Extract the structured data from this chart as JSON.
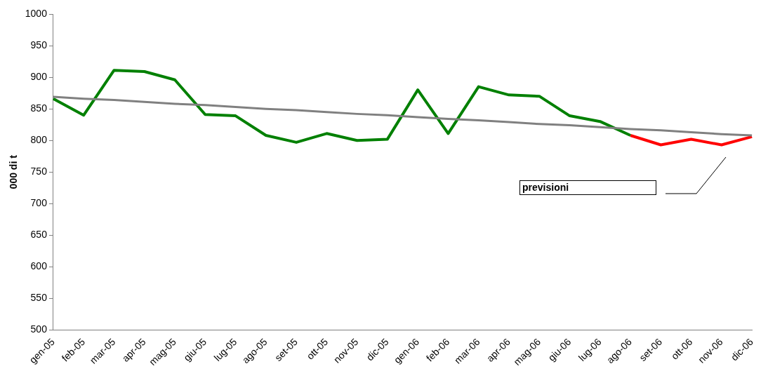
{
  "chart_data": {
    "type": "line",
    "ylabel": "000 di t",
    "categories": [
      "gen-05",
      "feb-05",
      "mar-05",
      "apr-05",
      "mag-05",
      "giu-05",
      "lug-05",
      "ago-05",
      "set-05",
      "ott-05",
      "nov-05",
      "dic-05",
      "gen-06",
      "feb-06",
      "mar-06",
      "apr-06",
      "mag-06",
      "giu-06",
      "lug-06",
      "ago-06",
      "set-06",
      "ott-06",
      "nov-06",
      "dic-06"
    ],
    "series": [
      {
        "color": "#808080",
        "values": [
          869,
          866,
          864,
          861,
          858,
          856,
          853,
          850,
          848,
          845,
          842,
          840,
          837,
          834,
          832,
          829,
          826,
          824,
          821,
          818,
          816,
          813,
          810,
          808
        ]
      },
      {
        "color": "#008000",
        "values": [
          866,
          840,
          911,
          909,
          896,
          841,
          839,
          808,
          797,
          811,
          800,
          802,
          880,
          811,
          885,
          872,
          870,
          839,
          830,
          808,
          null,
          null,
          null,
          null
        ]
      },
      {
        "color": "#ff0000",
        "values": [
          null,
          null,
          null,
          null,
          null,
          null,
          null,
          null,
          null,
          null,
          null,
          null,
          null,
          null,
          null,
          null,
          null,
          null,
          null,
          808,
          793,
          802,
          793,
          806
        ]
      }
    ],
    "ylim": [
      500,
      1000
    ],
    "yticks": [
      500,
      550,
      600,
      650,
      700,
      750,
      800,
      850,
      900,
      950,
      1000
    ],
    "grid": false,
    "legend": false,
    "marker": "none",
    "line_style": "solid",
    "annotations": [
      "previsioni"
    ]
  }
}
